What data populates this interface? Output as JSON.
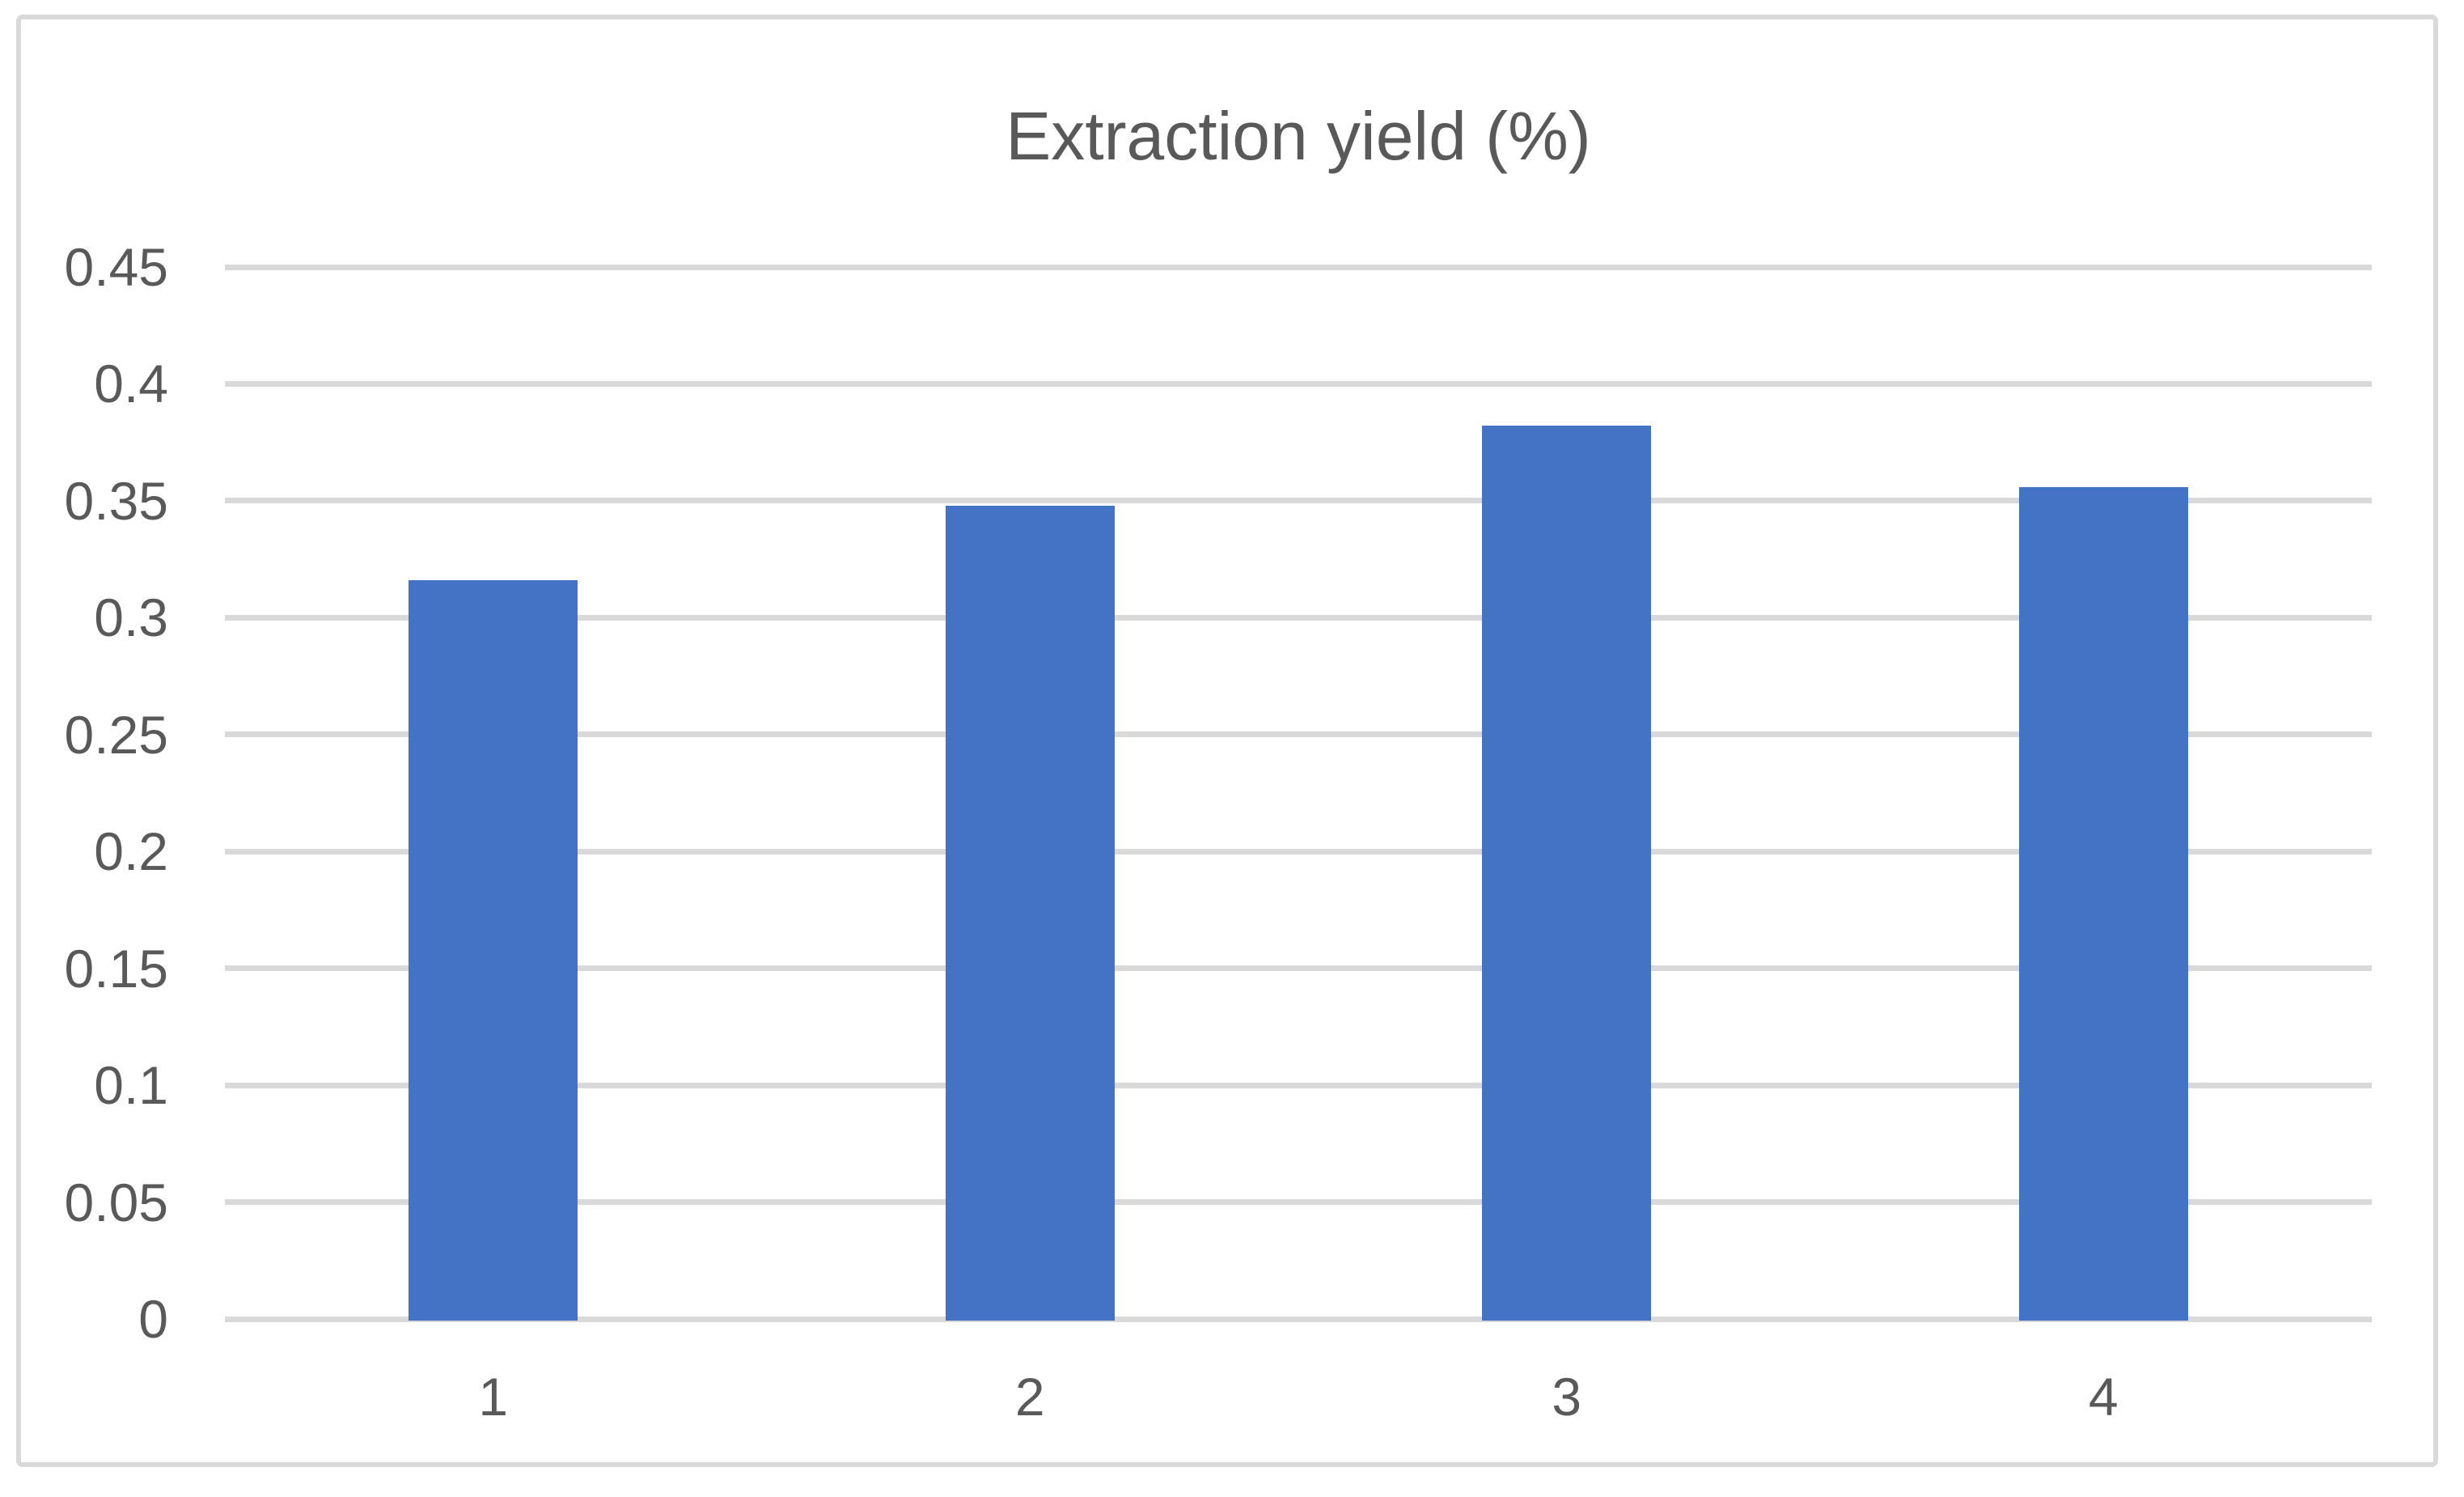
{
  "figure": {
    "background_color": "#FFFFFF",
    "border_color": "#D9D9D9"
  },
  "chart_data": {
    "type": "bar",
    "title": "Extraction yield (%)",
    "categories": [
      "1",
      "2",
      "3",
      "4"
    ],
    "values": [
      0.316,
      0.348,
      0.382,
      0.356
    ],
    "xlabel": "",
    "ylabel": "",
    "ylim": [
      0,
      0.45
    ],
    "ytick_step": 0.05,
    "ytick_labels": [
      "0",
      "0.05",
      "0.1",
      "0.15",
      "0.2",
      "0.25",
      "0.3",
      "0.35",
      "0.4",
      "0.45"
    ],
    "grid": true,
    "legend": false,
    "bar_color": "#4472C4",
    "gridline_color": "#D9D9D9",
    "text_color": "#595959"
  }
}
